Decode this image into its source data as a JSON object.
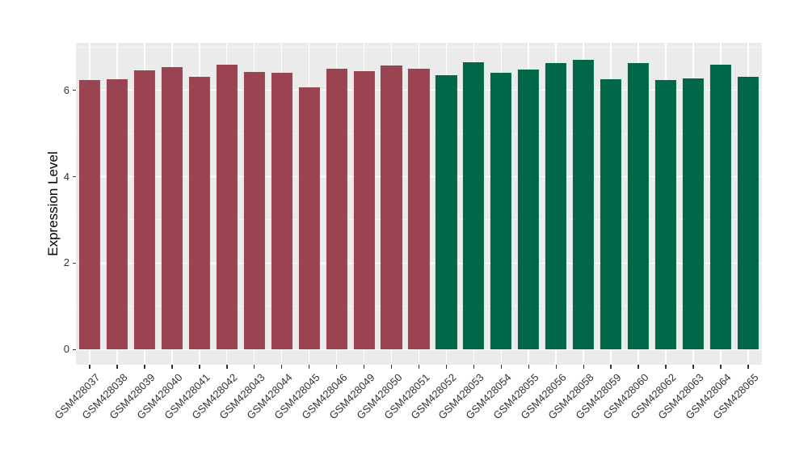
{
  "chart_data": {
    "type": "bar",
    "title": "",
    "xlabel": "",
    "ylabel": "Expression Level",
    "legend_position": "none",
    "grid": true,
    "panel_bg": "#EBEBEB",
    "grid_major_color": "#FFFFFF",
    "grid_minor_color": "#F5F5F5",
    "ylim": [
      -0.35,
      7.1
    ],
    "yticks": [
      0,
      2,
      4,
      6
    ],
    "ytick_labels": [
      "0",
      "2",
      "4",
      "6"
    ],
    "yticks_minor": [
      1,
      3,
      5,
      7
    ],
    "palette": {
      "maroon": "#9A4452",
      "green": "#006849"
    },
    "categories": [
      "GSM428037",
      "GSM428038",
      "GSM428039",
      "GSM428040",
      "GSM428041",
      "GSM428042",
      "GSM428043",
      "GSM428044",
      "GSM428045",
      "GSM428046",
      "GSM428049",
      "GSM428050",
      "GSM428051",
      "GSM428052",
      "GSM428053",
      "GSM428054",
      "GSM428055",
      "GSM428056",
      "GSM428058",
      "GSM428059",
      "GSM428060",
      "GSM428062",
      "GSM428063",
      "GSM428064",
      "GSM428065"
    ],
    "values": [
      6.24,
      6.26,
      6.46,
      6.54,
      6.32,
      6.6,
      6.43,
      6.41,
      6.06,
      6.49,
      6.44,
      6.57,
      6.49,
      6.35,
      6.65,
      6.4,
      6.48,
      6.63,
      6.7,
      6.26,
      6.62,
      6.24,
      6.28,
      6.6,
      6.31
    ],
    "groups": [
      "maroon",
      "maroon",
      "maroon",
      "maroon",
      "maroon",
      "maroon",
      "maroon",
      "maroon",
      "maroon",
      "maroon",
      "maroon",
      "maroon",
      "maroon",
      "green",
      "green",
      "green",
      "green",
      "green",
      "green",
      "green",
      "green",
      "green",
      "green",
      "green",
      "green"
    ]
  }
}
